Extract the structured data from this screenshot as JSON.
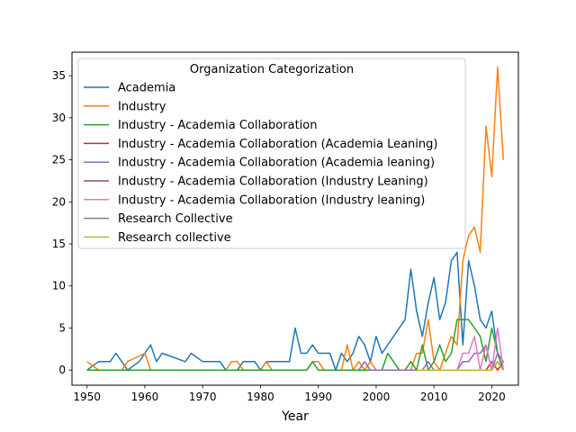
{
  "chart_data": {
    "type": "line",
    "xlabel": "Year",
    "ylabel": "",
    "xlim": [
      1947.4,
      2024.6
    ],
    "ylim": [
      -1.8,
      37.8
    ],
    "xticks": [
      1950,
      1960,
      1970,
      1980,
      1990,
      2000,
      2010,
      2020
    ],
    "yticks": [
      0,
      5,
      10,
      15,
      20,
      25,
      30,
      35
    ],
    "grid": false,
    "legend": {
      "title": "Organization Categorization",
      "placement": "upper-left"
    },
    "series": [
      {
        "name": "Academia",
        "color": "#1f77b4",
        "points": [
          [
            1950,
            0
          ],
          [
            1952,
            1
          ],
          [
            1954,
            1
          ],
          [
            1955,
            2
          ],
          [
            1956,
            1
          ],
          [
            1957,
            0
          ],
          [
            1959,
            1
          ],
          [
            1960,
            2
          ],
          [
            1961,
            3
          ],
          [
            1962,
            1
          ],
          [
            1963,
            2
          ],
          [
            1967,
            1
          ],
          [
            1968,
            2
          ],
          [
            1970,
            1
          ],
          [
            1973,
            1
          ],
          [
            1974,
            0
          ],
          [
            1976,
            0
          ],
          [
            1977,
            1
          ],
          [
            1979,
            1
          ],
          [
            1980,
            0
          ],
          [
            1981,
            1
          ],
          [
            1985,
            1
          ],
          [
            1986,
            5
          ],
          [
            1987,
            2
          ],
          [
            1988,
            2
          ],
          [
            1989,
            3
          ],
          [
            1990,
            2
          ],
          [
            1992,
            2
          ],
          [
            1993,
            0
          ],
          [
            1994,
            2
          ],
          [
            1995,
            1
          ],
          [
            1996,
            2
          ],
          [
            1997,
            4
          ],
          [
            1998,
            3
          ],
          [
            1999,
            1
          ],
          [
            2000,
            4
          ],
          [
            2001,
            2
          ],
          [
            2005,
            6
          ],
          [
            2006,
            12
          ],
          [
            2007,
            7
          ],
          [
            2008,
            4
          ],
          [
            2009,
            8
          ],
          [
            2010,
            11
          ],
          [
            2011,
            6
          ],
          [
            2012,
            8
          ],
          [
            2013,
            13
          ],
          [
            2014,
            14
          ],
          [
            2015,
            3
          ],
          [
            2016,
            13
          ],
          [
            2017,
            10
          ],
          [
            2018,
            6
          ],
          [
            2019,
            5
          ],
          [
            2020,
            7
          ],
          [
            2021,
            2
          ],
          [
            2022,
            0
          ]
        ]
      },
      {
        "name": "Industry",
        "color": "#ff7f0e",
        "points": [
          [
            1950,
            1
          ],
          [
            1951,
            0.5
          ],
          [
            1952,
            0
          ],
          [
            1956,
            0
          ],
          [
            1957,
            1
          ],
          [
            1960,
            2
          ],
          [
            1961,
            0
          ],
          [
            1974,
            0
          ],
          [
            1975,
            1
          ],
          [
            1976,
            1
          ],
          [
            1977,
            0
          ],
          [
            1980,
            0
          ],
          [
            1981,
            1
          ],
          [
            1982,
            0
          ],
          [
            1988,
            0
          ],
          [
            1989,
            1
          ],
          [
            1990,
            1
          ],
          [
            1991,
            0
          ],
          [
            1994,
            0
          ],
          [
            1995,
            3
          ],
          [
            1996,
            0
          ],
          [
            1997,
            1
          ],
          [
            1998,
            0
          ],
          [
            1999,
            1
          ],
          [
            2000,
            0
          ],
          [
            2006,
            0
          ],
          [
            2007,
            2
          ],
          [
            2008,
            2
          ],
          [
            2009,
            6
          ],
          [
            2010,
            1
          ],
          [
            2011,
            0
          ],
          [
            2012,
            2
          ],
          [
            2013,
            4
          ],
          [
            2014,
            3
          ],
          [
            2015,
            13
          ],
          [
            2016,
            16
          ],
          [
            2017,
            17
          ],
          [
            2018,
            14
          ],
          [
            2019,
            29
          ],
          [
            2020,
            23
          ],
          [
            2021,
            36
          ],
          [
            2022,
            25
          ]
        ]
      },
      {
        "name": "Industry - Academia Collaboration",
        "color": "#2ca02c",
        "points": [
          [
            1950,
            0
          ],
          [
            1988,
            0
          ],
          [
            1989,
            1
          ],
          [
            1990,
            0
          ],
          [
            2001,
            0
          ],
          [
            2002,
            2
          ],
          [
            2003,
            1
          ],
          [
            2004,
            0
          ],
          [
            2005,
            0
          ],
          [
            2006,
            1
          ],
          [
            2007,
            0
          ],
          [
            2008,
            3
          ],
          [
            2009,
            0
          ],
          [
            2010,
            1
          ],
          [
            2011,
            3
          ],
          [
            2012,
            1
          ],
          [
            2013,
            2
          ],
          [
            2014,
            6
          ],
          [
            2015,
            6
          ],
          [
            2016,
            6
          ],
          [
            2017,
            5
          ],
          [
            2018,
            4
          ],
          [
            2019,
            1
          ],
          [
            2020,
            5
          ],
          [
            2021,
            2
          ],
          [
            2022,
            0
          ]
        ]
      },
      {
        "name": "Industry - Academia Collaboration (Academia Leaning)",
        "color": "#d62728",
        "points": [
          [
            2019,
            0
          ],
          [
            2020,
            1
          ],
          [
            2021,
            0
          ],
          [
            2022,
            1
          ]
        ]
      },
      {
        "name": "Industry - Academia Collaboration (Academia leaning)",
        "color": "#9467bd",
        "points": [
          [
            1997,
            0
          ],
          [
            1998,
            1
          ],
          [
            1999,
            0
          ],
          [
            2008,
            0
          ],
          [
            2009,
            1
          ],
          [
            2010,
            0
          ],
          [
            2014,
            0
          ],
          [
            2015,
            1
          ],
          [
            2016,
            1
          ],
          [
            2017,
            2
          ],
          [
            2018,
            2
          ],
          [
            2019,
            3
          ],
          [
            2020,
            0
          ],
          [
            2021,
            2
          ],
          [
            2022,
            1
          ]
        ]
      },
      {
        "name": "Industry - Academia Collaboration (Industry Leaning)",
        "color": "#8c564b",
        "points": [
          [
            2019,
            0
          ],
          [
            2020,
            0
          ],
          [
            2021,
            1
          ],
          [
            2022,
            0
          ]
        ]
      },
      {
        "name": "Industry - Academia Collaboration (Industry leaning)",
        "color": "#e377c2",
        "points": [
          [
            2014,
            0
          ],
          [
            2015,
            2
          ],
          [
            2016,
            2
          ],
          [
            2017,
            4
          ],
          [
            2018,
            0
          ],
          [
            2019,
            3
          ],
          [
            2020,
            0
          ],
          [
            2021,
            5
          ],
          [
            2022,
            0
          ]
        ]
      },
      {
        "name": "Research Collective",
        "color": "#7f7f7f",
        "points": [
          [
            2020,
            0
          ],
          [
            2021,
            1
          ],
          [
            2022,
            0
          ]
        ]
      },
      {
        "name": "Research collective",
        "color": "#bcbd22",
        "points": [
          [
            2007,
            0
          ],
          [
            2008,
            0
          ],
          [
            2009,
            0
          ],
          [
            2010,
            0
          ],
          [
            2011,
            0
          ],
          [
            2012,
            0
          ],
          [
            2013,
            0
          ],
          [
            2014,
            0
          ],
          [
            2015,
            0
          ],
          [
            2016,
            0
          ],
          [
            2017,
            0
          ],
          [
            2018,
            0
          ],
          [
            2019,
            0
          ],
          [
            2020,
            0
          ],
          [
            2021,
            1
          ],
          [
            2022,
            0
          ]
        ]
      }
    ]
  }
}
